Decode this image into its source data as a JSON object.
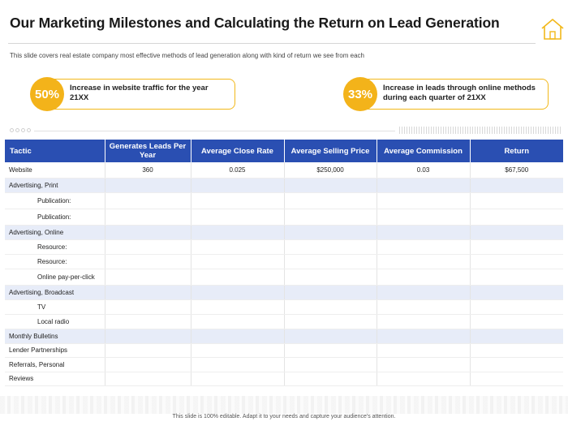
{
  "title": "Our Marketing Milestones and Calculating the Return on Lead Generation",
  "subtitle": "This slide covers real estate company most effective methods of lead generation along with kind of return we see from each",
  "stats": [
    {
      "value": "50%",
      "text": "Increase in website traffic for the year 21XX"
    },
    {
      "value": "33%",
      "text": "Increase in leads through online methods during each quarter of 21XX"
    }
  ],
  "table": {
    "headers": [
      "Tactic",
      "Generates Leads Per Year",
      "Average Close Rate",
      "Average Selling Price",
      "Average Commission",
      "Return"
    ],
    "rows": [
      {
        "tactic": "Website",
        "leads": "360",
        "close_rate": "0.025",
        "selling_price": "$250,000",
        "commission": "0.03",
        "return": "$67,500"
      },
      {
        "tactic": "Advertising, Print",
        "leads": "",
        "close_rate": "",
        "selling_price": "",
        "commission": "",
        "return": ""
      },
      {
        "tactic": "Publication:",
        "leads": "",
        "close_rate": "",
        "selling_price": "",
        "commission": "",
        "return": ""
      },
      {
        "tactic": "Publication:",
        "leads": "",
        "close_rate": "",
        "selling_price": "",
        "commission": "",
        "return": ""
      },
      {
        "tactic": "Advertising, Online",
        "leads": "",
        "close_rate": "",
        "selling_price": "",
        "commission": "",
        "return": ""
      },
      {
        "tactic": "Resource:",
        "leads": "",
        "close_rate": "",
        "selling_price": "",
        "commission": "",
        "return": ""
      },
      {
        "tactic": "Resource:",
        "leads": "",
        "close_rate": "",
        "selling_price": "",
        "commission": "",
        "return": ""
      },
      {
        "tactic": "Online pay-per-click",
        "leads": "",
        "close_rate": "",
        "selling_price": "",
        "commission": "",
        "return": ""
      },
      {
        "tactic": "Advertising, Broadcast",
        "leads": "",
        "close_rate": "",
        "selling_price": "",
        "commission": "",
        "return": ""
      },
      {
        "tactic": "TV",
        "leads": "",
        "close_rate": "",
        "selling_price": "",
        "commission": "",
        "return": ""
      },
      {
        "tactic": "Local radio",
        "leads": "",
        "close_rate": "",
        "selling_price": "",
        "commission": "",
        "return": ""
      },
      {
        "tactic": "Monthly Bulletins",
        "leads": "",
        "close_rate": "",
        "selling_price": "",
        "commission": "",
        "return": ""
      },
      {
        "tactic": "Lender Partnerships",
        "leads": "",
        "close_rate": "",
        "selling_price": "",
        "commission": "",
        "return": ""
      },
      {
        "tactic": "Referrals, Personal",
        "leads": "",
        "close_rate": "",
        "selling_price": "",
        "commission": "",
        "return": ""
      },
      {
        "tactic": "Reviews",
        "leads": "",
        "close_rate": "",
        "selling_price": "",
        "commission": "",
        "return": ""
      }
    ]
  },
  "footer": "This slide is 100% editable. Adapt it to your needs and capture your audience's attention.",
  "colors": {
    "accent": "#f3b31a",
    "header": "#2a4fb2",
    "category_row": "#e7ecf8"
  },
  "icons": {
    "corner": "house-outline-icon"
  }
}
